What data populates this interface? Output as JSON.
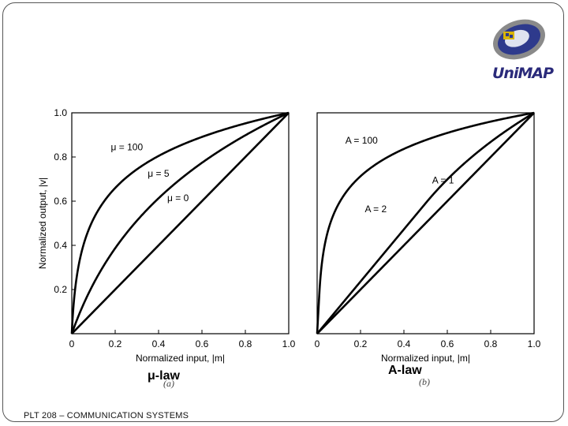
{
  "slide": {
    "logo_text": "UniMAP",
    "footer": "PLT 208 – COMMUNICATION SYSTEMS",
    "caption_mu": "μ-law",
    "caption_a": "A-law",
    "sub_a": "(a)",
    "sub_b": "(b)"
  },
  "chart_data": [
    {
      "type": "line",
      "xlabel": "Normalized input, |m|",
      "ylabel": "Normalized output, |v|",
      "xlim": [
        0,
        1
      ],
      "ylim": [
        0,
        1
      ],
      "xticks": [
        "0",
        "0.2",
        "0.4",
        "0.6",
        "0.8",
        "1.0"
      ],
      "yticks": [
        "0.2",
        "0.4",
        "0.6",
        "0.8",
        "1.0"
      ],
      "grid": false,
      "series": [
        {
          "name": "μ = 100",
          "law": "mu",
          "param": 100
        },
        {
          "name": "μ = 5",
          "law": "mu",
          "param": 5
        },
        {
          "name": "μ = 0",
          "law": "mu",
          "param": 0
        }
      ]
    },
    {
      "type": "line",
      "xlabel": "Normalized input, |m|",
      "ylabel": "",
      "xlim": [
        0,
        1
      ],
      "ylim": [
        0,
        1
      ],
      "xticks": [
        "0",
        "0.2",
        "0.4",
        "0.6",
        "0.8",
        "1.0"
      ],
      "yticks": [],
      "grid": false,
      "series": [
        {
          "name": "A = 100",
          "law": "A",
          "param": 100
        },
        {
          "name": "A = 2",
          "law": "A",
          "param": 2
        },
        {
          "name": "A = 1",
          "law": "A",
          "param": 1
        }
      ]
    }
  ]
}
